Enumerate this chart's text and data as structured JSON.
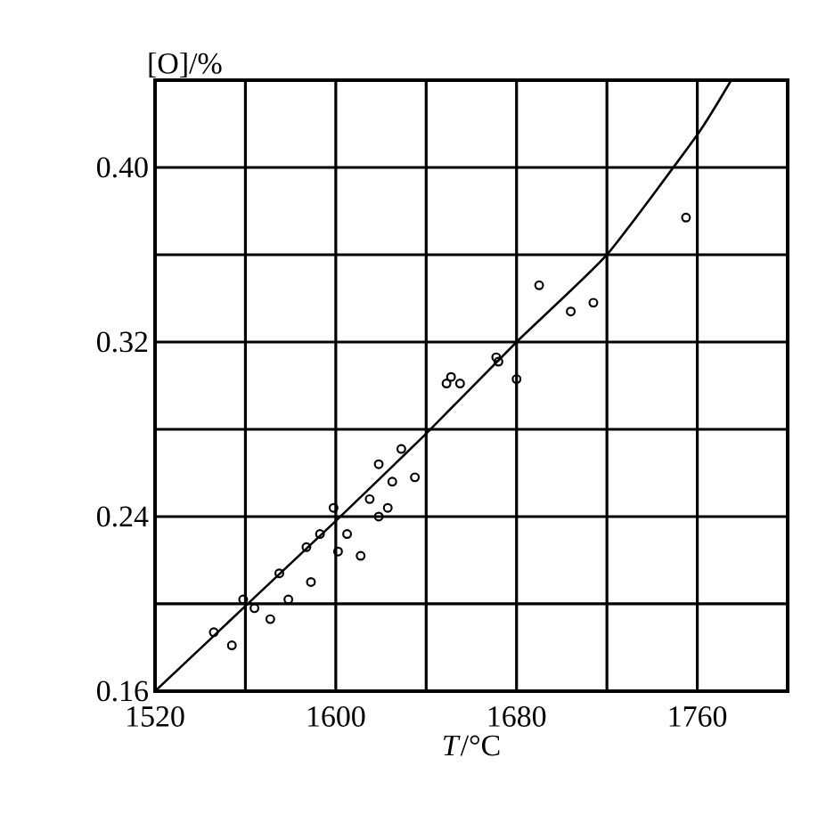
{
  "chart_data": {
    "type": "scatter",
    "xlabel": "*T*/°C",
    "ylabel": "[O]/%",
    "xlim": [
      1520,
      1800
    ],
    "ylim": [
      0.16,
      0.44
    ],
    "xticks": [
      1520,
      {
        "value": 1560,
        "label": null
      },
      1600,
      {
        "value": 1640,
        "label": null
      },
      1680,
      {
        "value": 1720,
        "label": null
      },
      1760,
      {
        "value": 1800,
        "label": null
      }
    ],
    "yticks": [
      {
        "value": 0.16,
        "label": "0.16"
      },
      {
        "value": 0.2,
        "label": null
      },
      {
        "value": 0.24,
        "label": "0.24"
      },
      {
        "value": 0.28,
        "label": null
      },
      {
        "value": 0.32,
        "label": "0.32"
      },
      {
        "value": 0.36,
        "label": null
      },
      {
        "value": 0.4,
        "label": "0.40"
      },
      {
        "value": 0.44,
        "label": null
      }
    ],
    "grid": true,
    "series": [
      {
        "type": "scatter",
        "marker": "circle",
        "color": "#000000",
        "x": [
          1546,
          1554,
          1559,
          1564,
          1571,
          1575,
          1579,
          1589,
          1587,
          1593,
          1599,
          1601,
          1605,
          1611,
          1615,
          1619,
          1623,
          1625,
          1629,
          1635,
          1619,
          1649,
          1655,
          1672,
          1680,
          1651,
          1671,
          1690,
          1704,
          1714,
          1755
        ],
        "values": [
          0.187,
          0.181,
          0.202,
          0.198,
          0.193,
          0.214,
          0.202,
          0.21,
          0.226,
          0.232,
          0.244,
          0.224,
          0.232,
          0.222,
          0.248,
          0.264,
          0.244,
          0.256,
          0.271,
          0.258,
          0.24,
          0.301,
          0.301,
          0.311,
          0.303,
          0.304,
          0.313,
          0.346,
          0.334,
          0.338,
          0.377
        ]
      },
      {
        "type": "line",
        "marker": "none",
        "line_style": "solid",
        "color": "#000000",
        "x": [
          1520,
          1560,
          1600,
          1640,
          1680,
          1720,
          1760,
          1775
        ],
        "values": [
          0.16,
          0.199,
          0.238,
          0.278,
          0.32,
          0.36,
          0.415,
          0.44
        ]
      }
    ]
  }
}
